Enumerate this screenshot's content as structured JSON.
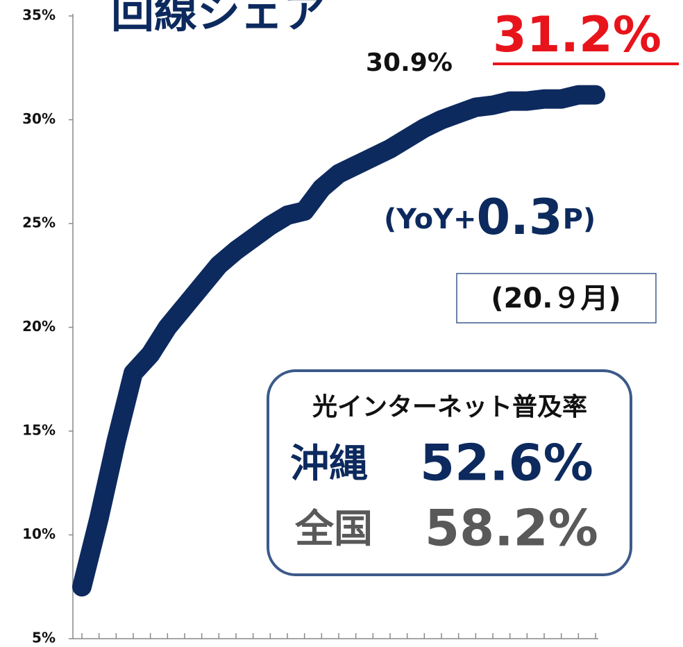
{
  "chart_data": {
    "type": "line",
    "title": "回線シェア",
    "categories": [
      null,
      null,
      null,
      null,
      null,
      null,
      null,
      null,
      null,
      null,
      null,
      null,
      null,
      null,
      null,
      null,
      null,
      null,
      null,
      null,
      null,
      null,
      null,
      null,
      null,
      null,
      null,
      null,
      null,
      null,
      null
    ],
    "series": [
      {
        "name": null,
        "color": "#0d2a5e",
        "values": [
          7.5,
          10.8,
          14.5,
          17.8,
          18.7,
          20.0,
          21.0,
          22.0,
          23.0,
          23.7,
          24.3,
          24.9,
          25.4,
          25.6,
          26.7,
          27.4,
          27.8,
          28.2,
          28.6,
          29.1,
          29.6,
          30.0,
          30.3,
          30.6,
          30.7,
          30.9,
          30.9,
          31.0,
          31.0,
          31.2,
          31.2
        ]
      }
    ],
    "ylim": [
      5,
      35
    ],
    "yticks": [
      {
        "value": 5,
        "label": "5%"
      },
      {
        "value": 10,
        "label": "10%"
      },
      {
        "value": 15,
        "label": "15%"
      },
      {
        "value": 20,
        "label": "20%"
      },
      {
        "value": 25,
        "label": "25%"
      },
      {
        "value": 30,
        "label": "30%"
      },
      {
        "value": 35,
        "label": "35%"
      }
    ],
    "annotations": {
      "previous": "30.9%",
      "current": "31.2%",
      "yoy_open": "(YoY+",
      "yoy_value": "0.3",
      "yoy_close": "P)",
      "date": "(20.９月)",
      "box": {
        "heading": "光インターネット普及率",
        "okinawa_label": "沖縄",
        "okinawa_value": "52.6%",
        "national_label": "全国",
        "national_value": "58.2%"
      }
    }
  }
}
